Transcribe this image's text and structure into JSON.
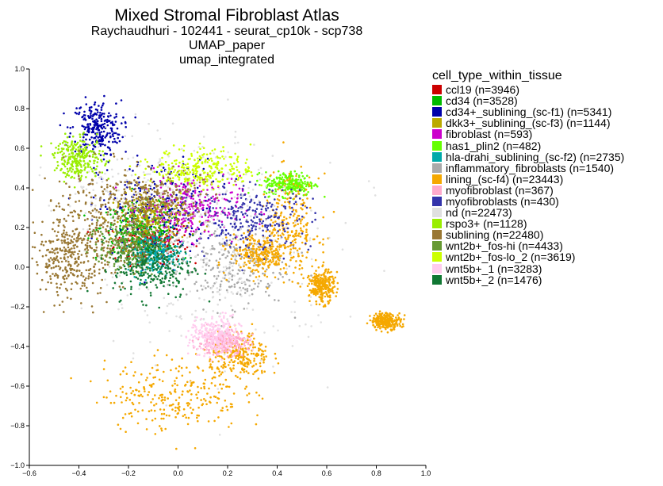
{
  "title": {
    "line1": "Mixed Stromal Fibroblast Atlas",
    "line2": "Raychaudhuri - 102441 - seurat_cp10k - scp738",
    "line3": "UMAP_paper",
    "line4": "umap_integrated"
  },
  "chart_data": {
    "type": "scatter",
    "title": "Mixed Stromal Fibroblast Atlas",
    "subtitle": "Raychaudhuri - 102441 - seurat_cp10k - scp738",
    "xlim": [
      -0.6,
      1.0
    ],
    "ylim": [
      -1.0,
      1.0
    ],
    "x_ticks": [
      -0.6,
      -0.4,
      -0.2,
      0.0,
      0.2,
      0.4,
      0.6,
      0.8,
      1.0
    ],
    "y_ticks": [
      -1.0,
      -0.8,
      -0.6,
      -0.4,
      -0.2,
      0.0,
      0.2,
      0.4,
      0.6,
      0.8,
      1.0
    ],
    "x_tick_labels": [
      "−0.6",
      "−0.4",
      "−0.2",
      "0.0",
      "0.2",
      "0.4",
      "0.6",
      "0.8",
      "1.0"
    ],
    "y_tick_labels": [
      "−1.0",
      "−0.8",
      "−0.6",
      "−0.4",
      "−0.2",
      "0.0",
      "0.2",
      "0.4",
      "0.6",
      "0.8",
      "1.0"
    ],
    "grid": false,
    "legend_title": "cell_type_within_tissue",
    "legend_position": "right",
    "series": [
      {
        "name": "ccl19 (n=3946)",
        "color": "#cc0000",
        "clusters": [
          [
            -0.12,
            0.12,
            0.07,
            0.05
          ]
        ]
      },
      {
        "name": "cd34 (n=3528)",
        "color": "#00bb00",
        "clusters": [
          [
            -0.15,
            0.2,
            0.08,
            0.06
          ]
        ]
      },
      {
        "name": "cd34+_sublining_(sc-f1) (n=5341)",
        "color": "#0000aa",
        "clusters": [
          [
            -0.33,
            0.7,
            0.05,
            0.07
          ],
          [
            -0.08,
            0.3,
            0.12,
            0.12
          ]
        ]
      },
      {
        "name": "dkk3+_sublining_(sc-f3) (n=1144)",
        "color": "#bbaa00",
        "clusters": [
          [
            -0.1,
            0.25,
            0.08,
            0.06
          ]
        ]
      },
      {
        "name": "fibroblast (n=593)",
        "color": "#cc00cc",
        "clusters": [
          [
            0.05,
            0.3,
            0.1,
            0.08
          ]
        ]
      },
      {
        "name": "has1_plin2 (n=482)",
        "color": "#66ff00",
        "clusters": [
          [
            0.45,
            0.42,
            0.05,
            0.03
          ]
        ]
      },
      {
        "name": "hla-drahi_sublining_(sc-f2) (n=2735)",
        "color": "#00aaaa",
        "clusters": [
          [
            -0.1,
            0.07,
            0.05,
            0.05
          ]
        ]
      },
      {
        "name": "inflammatory_fibroblasts (n=1540)",
        "color": "#aaaaaa",
        "clusters": [
          [
            0.2,
            0.0,
            0.12,
            0.1
          ]
        ]
      },
      {
        "name": "lining_(sc-f4) (n=23443)",
        "color": "#f5a800",
        "clusters": [
          [
            -0.02,
            -0.64,
            0.14,
            0.09
          ],
          [
            0.25,
            -0.45,
            0.06,
            0.06
          ],
          [
            0.45,
            0.2,
            0.06,
            0.13
          ],
          [
            0.33,
            0.07,
            0.06,
            0.05
          ],
          [
            0.58,
            -0.1,
            0.025,
            0.04
          ],
          [
            0.84,
            -0.27,
            0.03,
            0.02
          ]
        ]
      },
      {
        "name": "myofibroblast (n=367)",
        "color": "#ffaacc",
        "clusters": [
          [
            0.18,
            -0.38,
            0.05,
            0.03
          ]
        ]
      },
      {
        "name": "myofibroblasts (n=430)",
        "color": "#3333aa",
        "clusters": [
          [
            0.3,
            0.25,
            0.12,
            0.08
          ]
        ]
      },
      {
        "name": "nd (n=22473)",
        "color": "#e0e0e0",
        "clusters": [
          [
            0.15,
            0.0,
            0.25,
            0.25
          ],
          [
            -0.1,
            0.35,
            0.25,
            0.15
          ]
        ]
      },
      {
        "name": "rspo3+ (n=1128)",
        "color": "#99ee00",
        "clusters": [
          [
            -0.4,
            0.55,
            0.05,
            0.05
          ]
        ]
      },
      {
        "name": "sublining (n=22480)",
        "color": "#997733",
        "clusters": [
          [
            -0.35,
            0.2,
            0.1,
            0.15
          ],
          [
            -0.1,
            0.35,
            0.1,
            0.07
          ],
          [
            -0.45,
            0.05,
            0.07,
            0.1
          ]
        ]
      },
      {
        "name": "wnt2b+_fos-hi (n=4433)",
        "color": "#669933",
        "clusters": [
          [
            -0.2,
            0.1,
            0.06,
            0.06
          ]
        ]
      },
      {
        "name": "wnt2b+_fos-lo_2 (n=3619)",
        "color": "#ccff00",
        "clusters": [
          [
            0.1,
            0.5,
            0.1,
            0.05
          ]
        ]
      },
      {
        "name": "wnt5b+_1 (n=3283)",
        "color": "#ffccee",
        "clusters": [
          [
            0.15,
            -0.35,
            0.05,
            0.05
          ]
        ]
      },
      {
        "name": "wnt5b+_2 (n=1476)",
        "color": "#117733",
        "clusters": [
          [
            -0.1,
            0.0,
            0.08,
            0.08
          ]
        ]
      }
    ]
  }
}
